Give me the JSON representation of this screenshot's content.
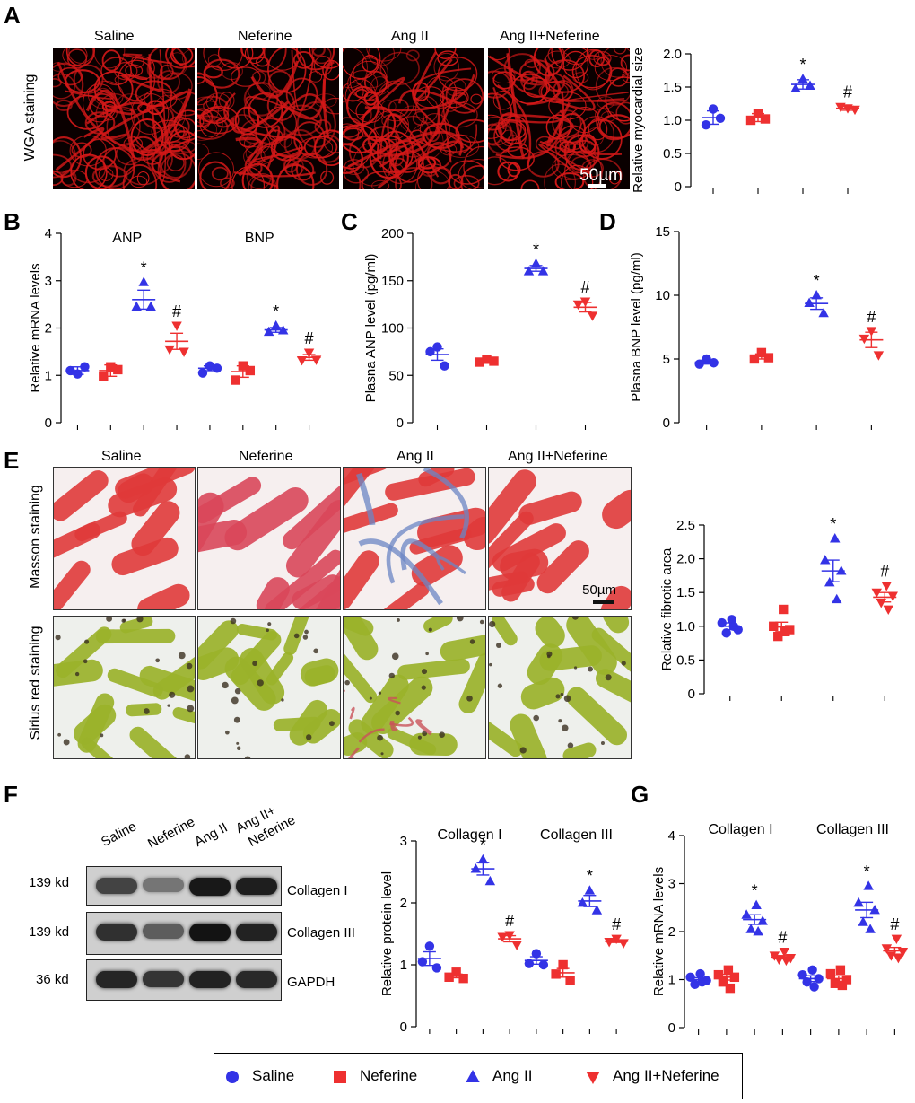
{
  "colors": {
    "saline": "#3333e6",
    "neferine": "#ee3030",
    "angii": "#3333e6",
    "angii_neferine": "#ee3030",
    "wga_fiber": "#d41818",
    "masson_red": "#e03a3a",
    "masson_blue": "#6b86c4",
    "sirius_green": "#9ab22a",
    "sirius_red": "#c9525a"
  },
  "group_labels": [
    "Saline",
    "Neferine",
    "Ang II",
    "Ang II+Neferine"
  ],
  "panelA": {
    "letter": "A",
    "row_label": "WGA staining",
    "scale_bar": "50µm"
  },
  "panelE": {
    "letter": "E",
    "row1_label": "Masson staining",
    "row2_label": "Sirius red staining",
    "scale_bar": "50µm"
  },
  "panelF": {
    "letter": "F",
    "lane_labels": [
      "Saline",
      "Neferine",
      "Ang II",
      "Ang II+\nNeferine"
    ],
    "lane_label_1": "Saline",
    "lane_label_2": "Neferine",
    "lane_label_3": "Ang II",
    "lane_label_4a": "Ang II+",
    "lane_label_4b": "Neferine",
    "kd1": "139 kd",
    "kd2": "139 kd",
    "kd3": "36 kd",
    "protein1": "Collagen I",
    "protein2": "Collagen III",
    "protein3": "GAPDH",
    "band_intensity": {
      "collagen_I": [
        0.72,
        0.45,
        0.95,
        0.92
      ],
      "collagen_III": [
        0.82,
        0.58,
        0.98,
        0.9
      ],
      "gapdh": [
        0.88,
        0.8,
        0.9,
        0.86
      ]
    }
  },
  "chart_data": [
    {
      "id": "A",
      "type": "scatter",
      "title": "",
      "ylabel": "Relative myocardial size",
      "ylim": [
        0,
        2.0
      ],
      "yticks": [
        "0",
        "0.5",
        "1.0",
        "1.5",
        "2.0"
      ],
      "ytick_values": [
        0,
        0.5,
        1.0,
        1.5,
        2.0
      ],
      "groups": [
        {
          "name": "Saline",
          "marker": "circle",
          "color": "#3333e6",
          "points": [
            1.17,
            0.93,
            1.03
          ],
          "mean": 1.04,
          "sem": 0.1
        },
        {
          "name": "Neferine",
          "marker": "square",
          "color": "#ee3030",
          "points": [
            1.1,
            1.0,
            1.02
          ],
          "mean": 1.04,
          "sem": 0.06
        },
        {
          "name": "Ang II",
          "marker": "triangle",
          "color": "#3333e6",
          "points": [
            1.62,
            1.48,
            1.52
          ],
          "mean": 1.54,
          "sem": 0.07,
          "annotation": "*"
        },
        {
          "name": "Ang II+Neferine",
          "marker": "triangle-down",
          "color": "#ee3030",
          "points": [
            1.18,
            1.2,
            1.16
          ],
          "mean": 1.18,
          "sem": 0.03,
          "annotation": "#"
        }
      ]
    },
    {
      "id": "B",
      "type": "scatter",
      "title": "",
      "ylabel": "Relative mRNA levels",
      "ylim": [
        0,
        4
      ],
      "yticks": [
        "0",
        "1",
        "2",
        "3",
        "4"
      ],
      "ytick_values": [
        0,
        1,
        2,
        3,
        4
      ],
      "group_titles": [
        "ANP",
        "BNP"
      ],
      "groups": [
        {
          "name": "Saline",
          "gene": "ANP",
          "marker": "circle",
          "color": "#3333e6",
          "points": [
            1.03,
            1.1,
            1.18
          ],
          "mean": 1.1,
          "sem": 0.08
        },
        {
          "name": "Neferine",
          "gene": "ANP",
          "marker": "square",
          "color": "#ee3030",
          "points": [
            1.18,
            0.98,
            1.12
          ],
          "mean": 1.1,
          "sem": 0.12
        },
        {
          "name": "Ang II",
          "gene": "ANP",
          "marker": "triangle",
          "color": "#3333e6",
          "points": [
            2.97,
            2.45,
            2.45
          ],
          "mean": 2.6,
          "sem": 0.2,
          "annotation": "*"
        },
        {
          "name": "Ang II+Neferine",
          "gene": "ANP",
          "marker": "triangle-down",
          "color": "#ee3030",
          "points": [
            2.05,
            1.55,
            1.5
          ],
          "mean": 1.72,
          "sem": 0.17,
          "annotation": "#"
        },
        {
          "name": "Saline",
          "gene": "BNP",
          "marker": "circle",
          "color": "#3333e6",
          "points": [
            1.2,
            1.05,
            1.15
          ],
          "mean": 1.15,
          "sem": 0.05
        },
        {
          "name": "Neferine",
          "gene": "BNP",
          "marker": "square",
          "color": "#ee3030",
          "points": [
            1.2,
            0.9,
            1.1
          ],
          "mean": 1.08,
          "sem": 0.12
        },
        {
          "name": "Ang II",
          "gene": "BNP",
          "marker": "triangle",
          "color": "#3333e6",
          "points": [
            2.05,
            1.92,
            1.95
          ],
          "mean": 1.96,
          "sem": 0.05,
          "annotation": "*"
        },
        {
          "name": "Ang II+Neferine",
          "gene": "BNP",
          "marker": "triangle-down",
          "color": "#ee3030",
          "points": [
            1.48,
            1.32,
            1.33
          ],
          "mean": 1.38,
          "sem": 0.06,
          "annotation": "#"
        }
      ]
    },
    {
      "id": "C",
      "type": "scatter",
      "title": "",
      "ylabel": "Plasna ANP level (pg/ml)",
      "ylim": [
        0,
        200
      ],
      "yticks": [
        "0",
        "50",
        "100",
        "150",
        "200"
      ],
      "ytick_values": [
        0,
        50,
        100,
        150,
        200
      ],
      "groups": [
        {
          "name": "Saline",
          "marker": "circle",
          "color": "#3333e6",
          "points": [
            80,
            75,
            60
          ],
          "mean": 72,
          "sem": 6
        },
        {
          "name": "Neferine",
          "marker": "square",
          "color": "#ee3030",
          "points": [
            67,
            64,
            65
          ],
          "mean": 65,
          "sem": 1
        },
        {
          "name": "Ang II",
          "marker": "triangle",
          "color": "#3333e6",
          "points": [
            168,
            160,
            160
          ],
          "mean": 163,
          "sem": 3,
          "annotation": "*"
        },
        {
          "name": "Ang II+Neferine",
          "marker": "triangle-down",
          "color": "#ee3030",
          "points": [
            128,
            125,
            113
          ],
          "mean": 122,
          "sem": 5,
          "annotation": "#"
        }
      ]
    },
    {
      "id": "D",
      "type": "scatter",
      "title": "",
      "ylabel": "Plasna BNP level (pg/ml)",
      "ylim": [
        0,
        15
      ],
      "yticks": [
        "0",
        "5",
        "10",
        "15"
      ],
      "ytick_values": [
        0,
        5,
        10,
        15
      ],
      "groups": [
        {
          "name": "Saline",
          "marker": "circle",
          "color": "#3333e6",
          "points": [
            5.0,
            4.6,
            4.7
          ],
          "mean": 4.75,
          "sem": 0.15
        },
        {
          "name": "Neferine",
          "marker": "square",
          "color": "#ee3030",
          "points": [
            5.5,
            5.0,
            5.1
          ],
          "mean": 5.2,
          "sem": 0.2
        },
        {
          "name": "Ang II",
          "marker": "triangle",
          "color": "#3333e6",
          "points": [
            10.0,
            9.4,
            8.6
          ],
          "mean": 9.35,
          "sem": 0.45,
          "annotation": "*"
        },
        {
          "name": "Ang II+Neferine",
          "marker": "triangle-down",
          "color": "#ee3030",
          "points": [
            7.2,
            6.6,
            5.3
          ],
          "mean": 6.5,
          "sem": 0.6,
          "annotation": "#"
        }
      ]
    },
    {
      "id": "E",
      "type": "scatter",
      "title": "",
      "ylabel": "Relative fibrotic area",
      "ylim": [
        0,
        2.5
      ],
      "yticks": [
        "0",
        "0.5",
        "1.0",
        "1.5",
        "2.0",
        "2.5"
      ],
      "ytick_values": [
        0,
        0.5,
        1.0,
        1.5,
        2.0,
        2.5
      ],
      "groups": [
        {
          "name": "Saline",
          "marker": "circle",
          "color": "#3333e6",
          "points": [
            1.1,
            1.05,
            0.95,
            0.9,
            1.0
          ],
          "mean": 1.0,
          "sem": 0.05
        },
        {
          "name": "Neferine",
          "marker": "square",
          "color": "#ee3030",
          "points": [
            1.25,
            1.0,
            0.95,
            0.85,
            0.92
          ],
          "mean": 0.99,
          "sem": 0.07
        },
        {
          "name": "Ang II",
          "marker": "triangle",
          "color": "#3333e6",
          "points": [
            2.3,
            1.98,
            1.82,
            1.65,
            1.4
          ],
          "mean": 1.82,
          "sem": 0.16,
          "annotation": "*"
        },
        {
          "name": "Ang II+Neferine",
          "marker": "triangle-down",
          "color": "#ee3030",
          "points": [
            1.6,
            1.5,
            1.45,
            1.35,
            1.25
          ],
          "mean": 1.43,
          "sem": 0.07,
          "annotation": "#"
        }
      ]
    },
    {
      "id": "F",
      "type": "scatter",
      "title": "",
      "ylabel": "Relative protein level",
      "ylim": [
        0,
        3
      ],
      "yticks": [
        "0",
        "1",
        "2",
        "3"
      ],
      "ytick_values": [
        0,
        1,
        2,
        3
      ],
      "group_titles": [
        "Collagen I",
        "Collagen III"
      ],
      "groups": [
        {
          "name": "Saline",
          "gene": "Collagen I",
          "marker": "circle",
          "color": "#3333e6",
          "points": [
            1.3,
            1.05,
            0.95
          ],
          "mean": 1.1,
          "sem": 0.11
        },
        {
          "name": "Neferine",
          "gene": "Collagen I",
          "marker": "square",
          "color": "#ee3030",
          "points": [
            0.88,
            0.8,
            0.78
          ],
          "mean": 0.82,
          "sem": 0.03
        },
        {
          "name": "Ang II",
          "gene": "Collagen I",
          "marker": "triangle",
          "color": "#3333e6",
          "points": [
            2.7,
            2.55,
            2.35
          ],
          "mean": 2.55,
          "sem": 0.1,
          "annotation": "*"
        },
        {
          "name": "Ang II+Neferine",
          "gene": "Collagen I",
          "marker": "triangle-down",
          "color": "#ee3030",
          "points": [
            1.48,
            1.45,
            1.32
          ],
          "mean": 1.42,
          "sem": 0.05,
          "annotation": "#"
        },
        {
          "name": "Saline",
          "gene": "Collagen III",
          "marker": "circle",
          "color": "#3333e6",
          "points": [
            1.18,
            1.02,
            1.0
          ],
          "mean": 1.07,
          "sem": 0.06
        },
        {
          "name": "Neferine",
          "gene": "Collagen III",
          "marker": "square",
          "color": "#ee3030",
          "points": [
            1.0,
            0.85,
            0.75
          ],
          "mean": 0.87,
          "sem": 0.07
        },
        {
          "name": "Ang II",
          "gene": "Collagen III",
          "marker": "triangle",
          "color": "#3333e6",
          "points": [
            2.2,
            2.0,
            1.88
          ],
          "mean": 2.03,
          "sem": 0.09,
          "annotation": "*"
        },
        {
          "name": "Ang II+Neferine",
          "gene": "Collagen III",
          "marker": "triangle-down",
          "color": "#ee3030",
          "points": [
            1.42,
            1.37,
            1.35
          ],
          "mean": 1.38,
          "sem": 0.02,
          "annotation": "#"
        }
      ]
    },
    {
      "id": "G",
      "type": "scatter",
      "title": "",
      "ylabel": "Relative mRNA levels",
      "ylim": [
        0,
        4
      ],
      "yticks": [
        "0",
        "1",
        "2",
        "3",
        "4"
      ],
      "ytick_values": [
        0,
        1,
        2,
        3,
        4
      ],
      "group_titles": [
        "Collagen I",
        "Collagen III"
      ],
      "groups": [
        {
          "name": "Saline",
          "gene": "Collagen I",
          "marker": "circle",
          "color": "#3333e6",
          "points": [
            1.12,
            1.05,
            0.98,
            0.9,
            0.95
          ],
          "mean": 1.0,
          "sem": 0.04
        },
        {
          "name": "Neferine",
          "gene": "Collagen I",
          "marker": "square",
          "color": "#ee3030",
          "points": [
            1.2,
            1.1,
            1.05,
            0.95,
            0.82
          ],
          "mean": 1.05,
          "sem": 0.06
        },
        {
          "name": "Ang II",
          "gene": "Collagen I",
          "marker": "triangle",
          "color": "#3333e6",
          "points": [
            2.55,
            2.35,
            2.22,
            2.05,
            2.0
          ],
          "mean": 2.25,
          "sem": 0.1,
          "annotation": "*"
        },
        {
          "name": "Ang II+Neferine",
          "gene": "Collagen I",
          "marker": "triangle-down",
          "color": "#ee3030",
          "points": [
            1.58,
            1.5,
            1.45,
            1.42,
            1.4
          ],
          "mean": 1.47,
          "sem": 0.03,
          "annotation": "#"
        },
        {
          "name": "Saline",
          "gene": "Collagen III",
          "marker": "circle",
          "color": "#3333e6",
          "points": [
            1.2,
            1.1,
            1.02,
            0.95,
            0.85
          ],
          "mean": 1.02,
          "sem": 0.06
        },
        {
          "name": "Neferine",
          "gene": "Collagen III",
          "marker": "square",
          "color": "#ee3030",
          "points": [
            1.2,
            1.12,
            1.0,
            0.92,
            0.88
          ],
          "mean": 1.02,
          "sem": 0.06
        },
        {
          "name": "Ang II",
          "gene": "Collagen III",
          "marker": "triangle",
          "color": "#3333e6",
          "points": [
            2.95,
            2.6,
            2.45,
            2.2,
            2.05
          ],
          "mean": 2.45,
          "sem": 0.16,
          "annotation": "*"
        },
        {
          "name": "Ang II+Neferine",
          "gene": "Collagen III",
          "marker": "triangle-down",
          "color": "#ee3030",
          "points": [
            1.85,
            1.65,
            1.58,
            1.5,
            1.45
          ],
          "mean": 1.6,
          "sem": 0.07,
          "annotation": "#"
        }
      ]
    }
  ],
  "panel_letters": {
    "B": "B",
    "C": "C",
    "D": "D",
    "G": "G"
  },
  "legend": [
    {
      "label": "Saline",
      "marker": "circle",
      "color": "#3333e6"
    },
    {
      "label": "Neferine",
      "marker": "square",
      "color": "#ee3030"
    },
    {
      "label": "Ang II",
      "marker": "triangle",
      "color": "#3333e6"
    },
    {
      "label": "Ang II+Neferine",
      "marker": "triangle-down",
      "color": "#ee3030"
    }
  ]
}
